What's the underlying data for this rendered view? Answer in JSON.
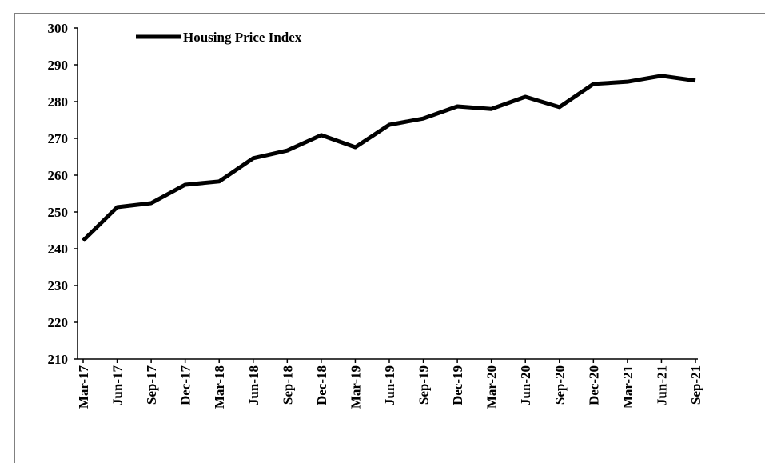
{
  "chart_data": {
    "type": "line",
    "categories": [
      "Mar-17",
      "Jun-17",
      "Sep-17",
      "Dec-17",
      "Mar-18",
      "Jun-18",
      "Sep-18",
      "Dec-18",
      "Mar-19",
      "Jun-19",
      "Sep-19",
      "Dec-19",
      "Mar-20",
      "Jun-20",
      "Sep-20",
      "Dec-20",
      "Mar-21",
      "Jun-21",
      "Sep-21"
    ],
    "series": [
      {
        "name": "Housing Price Index",
        "color": "#000000",
        "values": [
          242.2,
          251.3,
          252.4,
          257.4,
          258.3,
          264.6,
          266.7,
          270.9,
          267.6,
          273.7,
          275.4,
          278.7,
          278.0,
          281.3,
          278.5,
          284.8,
          285.4,
          287.0,
          285.7
        ]
      }
    ],
    "ylim": [
      210,
      300
    ],
    "yticks": [
      210,
      220,
      230,
      240,
      250,
      260,
      270,
      280,
      290,
      300
    ],
    "legend": "top-left",
    "grid": false
  }
}
